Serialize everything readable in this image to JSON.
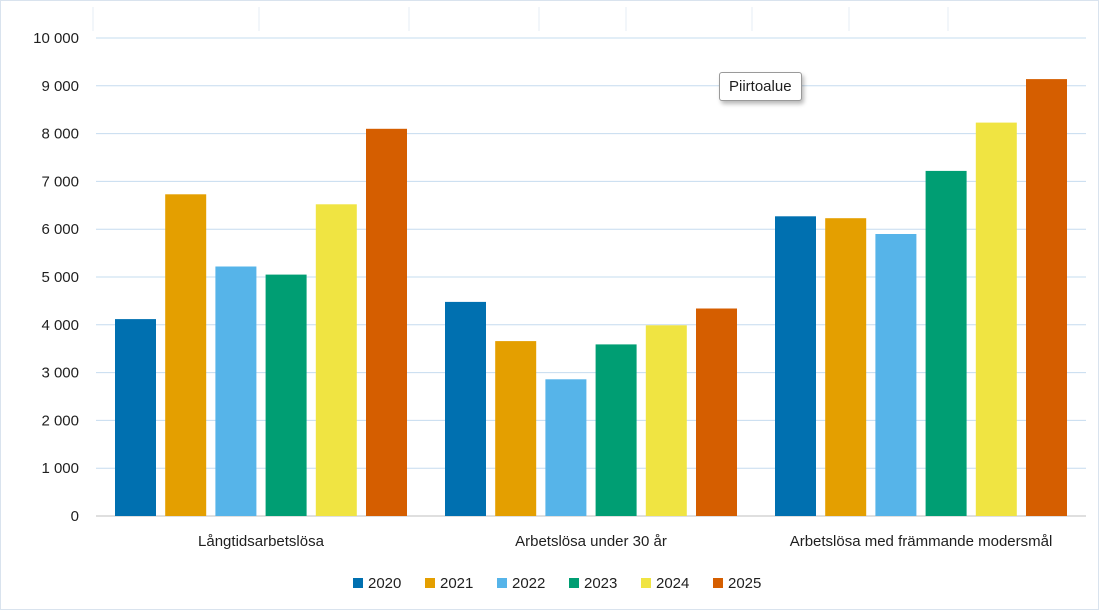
{
  "chart_data": {
    "type": "bar",
    "title": "",
    "xlabel": "",
    "ylabel": "",
    "categories": [
      "Långtidsarbetslösa",
      "Arbetslösa under 30 år",
      "Arbetslösa med främmande modersmål"
    ],
    "series": [
      {
        "name": "2020",
        "color": "#0070b0",
        "values": [
          4120,
          4480,
          6270
        ]
      },
      {
        "name": "2021",
        "color": "#e49f00",
        "values": [
          6730,
          3660,
          6230
        ]
      },
      {
        "name": "2022",
        "color": "#56b4e9",
        "values": [
          5220,
          2860,
          5900
        ]
      },
      {
        "name": "2023",
        "color": "#009e73",
        "values": [
          5050,
          3590,
          7220
        ]
      },
      {
        "name": "2024",
        "color": "#f0e442",
        "values": [
          6520,
          3990,
          8230
        ]
      },
      {
        "name": "2025",
        "color": "#d55e00",
        "values": [
          8100,
          4340,
          9140
        ]
      }
    ],
    "ylim": [
      0,
      10000
    ],
    "yticks": [
      0,
      1000,
      2000,
      3000,
      4000,
      5000,
      6000,
      7000,
      8000,
      9000,
      10000
    ],
    "ytick_labels": [
      "0",
      "1 000",
      "2 000",
      "3 000",
      "4 000",
      "5 000",
      "6 000",
      "7 000",
      "8 000",
      "9 000",
      "10 000"
    ],
    "grid": true,
    "legend_position": "bottom"
  },
  "tooltip": {
    "text": "Piirtoalue"
  }
}
